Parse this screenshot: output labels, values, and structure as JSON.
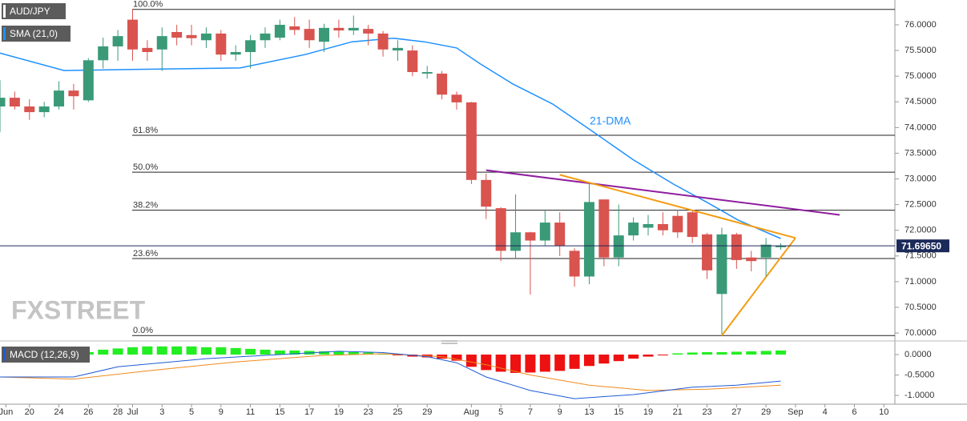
{
  "chart_data": [
    {
      "type": "candlestick",
      "title": "AUD/JPY",
      "x": [
        0,
        1,
        2,
        3,
        4,
        5,
        6,
        7,
        8,
        9,
        10,
        11,
        12,
        13,
        14,
        15,
        16,
        17,
        18,
        19,
        20,
        21,
        22,
        23,
        24,
        25,
        26,
        27,
        28,
        29,
        30,
        31,
        32,
        33,
        34,
        35,
        36,
        37,
        38,
        39,
        40,
        41,
        42,
        43,
        44,
        45,
        46,
        47,
        48,
        49,
        50,
        51,
        52,
        53
      ],
      "open": [
        74.41,
        74.58,
        74.41,
        74.3,
        74.41,
        74.72,
        74.53,
        75.31,
        75.58,
        76.1,
        75.55,
        75.52,
        75.86,
        75.8,
        75.7,
        75.83,
        75.42,
        75.47,
        75.7,
        75.75,
        75.97,
        75.92,
        75.67,
        75.94,
        75.89,
        75.92,
        75.83,
        75.5,
        75.5,
        75.05,
        75.05,
        74.64,
        74.49,
        72.98,
        72.43,
        71.6,
        71.96,
        71.8,
        72.15,
        71.6,
        71.1,
        72.6,
        71.47,
        71.9,
        72.05,
        72.12,
        72.28,
        72.35,
        71.92,
        70.76,
        71.92,
        71.47,
        71.47,
        71.67
      ],
      "high": [
        74.92,
        74.7,
        74.55,
        74.5,
        74.9,
        74.85,
        75.35,
        75.75,
        75.9,
        76.3,
        75.7,
        75.95,
        76.0,
        76.0,
        75.95,
        75.9,
        75.6,
        75.8,
        75.95,
        76.1,
        76.15,
        76.1,
        76.02,
        76.1,
        76.18,
        76.0,
        75.88,
        75.7,
        75.6,
        75.2,
        75.1,
        74.7,
        74.5,
        73.1,
        72.45,
        72.7,
        71.97,
        72.38,
        72.35,
        71.65,
        72.9,
        72.6,
        72.5,
        72.25,
        72.3,
        72.35,
        72.4,
        72.38,
        71.95,
        72.05,
        71.95,
        71.6,
        71.85,
        71.75
      ],
      "low": [
        73.91,
        74.35,
        74.15,
        74.2,
        74.35,
        74.35,
        74.5,
        75.15,
        75.3,
        75.3,
        75.3,
        75.1,
        75.6,
        75.6,
        75.55,
        75.3,
        75.3,
        75.15,
        75.55,
        75.7,
        75.8,
        75.55,
        75.47,
        75.75,
        75.8,
        75.6,
        75.38,
        75.3,
        75.0,
        74.95,
        74.55,
        74.35,
        72.9,
        72.22,
        71.4,
        71.45,
        70.75,
        71.7,
        71.5,
        70.9,
        70.95,
        71.3,
        71.3,
        71.8,
        71.9,
        71.9,
        71.85,
        71.75,
        71.05,
        69.98,
        71.25,
        71.2,
        71.1,
        71.62
      ],
      "close": [
        74.58,
        74.41,
        74.3,
        74.41,
        74.72,
        74.61,
        75.31,
        75.58,
        75.78,
        75.52,
        75.47,
        75.78,
        75.75,
        75.74,
        75.83,
        75.42,
        75.47,
        75.7,
        75.83,
        76.0,
        75.9,
        75.7,
        75.94,
        75.89,
        75.94,
        75.83,
        75.52,
        75.55,
        75.08,
        75.08,
        74.64,
        74.49,
        72.98,
        72.46,
        71.6,
        71.96,
        71.8,
        72.15,
        71.7,
        71.1,
        72.55,
        71.47,
        71.9,
        72.15,
        72.12,
        72.0,
        71.96,
        71.87,
        71.22,
        71.92,
        71.42,
        71.4,
        71.72,
        71.7
      ],
      "up_color": "#3a9a78",
      "down_color": "#d9534f",
      "xlim": [
        0,
        60.75
      ],
      "xticks": [
        {
          "value": 0.4,
          "label": "Jun"
        },
        {
          "value": 2,
          "label": "20"
        },
        {
          "value": 4,
          "label": "24"
        },
        {
          "value": 6,
          "label": "26"
        },
        {
          "value": 8,
          "label": "28"
        },
        {
          "value": 9,
          "label": "Jul"
        },
        {
          "value": 11,
          "label": "3"
        },
        {
          "value": 13,
          "label": "5"
        },
        {
          "value": 15,
          "label": "9"
        },
        {
          "value": 17,
          "label": "11"
        },
        {
          "value": 19,
          "label": "15"
        },
        {
          "value": 21,
          "label": "17"
        },
        {
          "value": 23,
          "label": "19"
        },
        {
          "value": 25,
          "label": "23"
        },
        {
          "value": 27,
          "label": "25"
        },
        {
          "value": 29,
          "label": "29"
        },
        {
          "value": 32,
          "label": "Aug"
        },
        {
          "value": 34,
          "label": "5"
        },
        {
          "value": 36,
          "label": "7"
        },
        {
          "value": 38,
          "label": "9"
        },
        {
          "value": 40,
          "label": "13"
        },
        {
          "value": 42,
          "label": "15"
        },
        {
          "value": 44,
          "label": "19"
        },
        {
          "value": 46,
          "label": "21"
        },
        {
          "value": 48,
          "label": "23"
        },
        {
          "value": 50,
          "label": "27"
        },
        {
          "value": 52,
          "label": "29"
        },
        {
          "value": 54,
          "label": "Sep"
        },
        {
          "value": 56,
          "label": "4"
        },
        {
          "value": 58,
          "label": "6"
        },
        {
          "value": 60,
          "label": "10"
        }
      ],
      "ylim": [
        69.845,
        76.483
      ],
      "yticks": [
        {
          "value": 70,
          "label": "70.0000"
        },
        {
          "value": 70.5,
          "label": "70.5000"
        },
        {
          "value": 71,
          "label": "71.0000"
        },
        {
          "value": 71.5,
          "label": "71.5000"
        },
        {
          "value": 72,
          "label": "72.0000"
        },
        {
          "value": 72.5,
          "label": "72.5000"
        },
        {
          "value": 73,
          "label": "73.0000"
        },
        {
          "value": 73.5,
          "label": "73.5000"
        },
        {
          "value": 74,
          "label": "74.0000"
        },
        {
          "value": 74.5,
          "label": "74.5000"
        },
        {
          "value": 75,
          "label": "75.0000"
        },
        {
          "value": 75.5,
          "label": "75.5000"
        },
        {
          "value": 76,
          "label": "76.0000"
        }
      ],
      "indicator": {
        "name": "SMA (21,0)",
        "annotation": "21-DMA",
        "color": "#1e90ff",
        "x": [
          0,
          4.35,
          9,
          16.3,
          20.7,
          23.9,
          26.7,
          28.8,
          31,
          32.6,
          34.8,
          37.5,
          40.3,
          43,
          45.7,
          47.9,
          50.1,
          53
        ],
        "values": [
          75.45,
          75.11,
          75.13,
          75.16,
          75.42,
          75.67,
          75.74,
          75.67,
          75.55,
          75.24,
          74.85,
          74.46,
          73.91,
          73.37,
          72.9,
          72.56,
          72.2,
          71.84
        ]
      },
      "levels": [
        {
          "label": "100.0%",
          "value": 76.3
        },
        {
          "label": "61.8%",
          "value": 73.85
        },
        {
          "label": "50.0%",
          "value": 73.13
        },
        {
          "label": "38.2%",
          "value": 72.39
        },
        {
          "label": "23.6%",
          "value": 71.45
        },
        {
          "label": "0.0%",
          "value": 69.95
        }
      ],
      "trendlines": [
        {
          "color": "#8e1e9e",
          "x": [
            33,
            57
          ],
          "values": [
            73.17,
            72.3
          ]
        },
        {
          "color": "#f39c12",
          "x": [
            38,
            54
          ],
          "values": [
            73.08,
            71.85
          ]
        },
        {
          "color": "#f39c12",
          "x": [
            49,
            54
          ],
          "values": [
            69.95,
            71.85
          ]
        }
      ],
      "last_price": {
        "value": 71.6965,
        "label": "71.69650"
      },
      "watermark": "FXSTREET"
    },
    {
      "type": "macd",
      "title": "MACD (12,26,9)",
      "xlim": [
        0,
        60.75
      ],
      "ylim": [
        -1.216,
        0.255
      ],
      "yticks": [
        {
          "value": 0,
          "label": "0.0000"
        },
        {
          "value": -0.5,
          "label": "-0.5000"
        },
        {
          "value": -1,
          "label": "-1.0000"
        }
      ],
      "histogram": {
        "up_color": "#22ee22",
        "down_color": "#ee1111",
        "x": [
          6,
          7,
          8,
          9,
          10,
          11,
          12,
          13,
          14,
          15,
          16,
          17,
          18,
          19,
          20,
          21,
          22,
          23,
          24,
          25,
          26,
          27,
          28,
          29,
          30,
          31,
          32,
          33,
          34,
          35,
          36,
          37,
          38,
          39,
          40,
          41,
          42,
          43,
          44,
          45,
          46,
          47,
          48,
          49,
          50,
          51,
          52,
          53
        ],
        "values": [
          0.06,
          0.12,
          0.15,
          0.18,
          0.2,
          0.2,
          0.2,
          0.2,
          0.18,
          0.18,
          0.16,
          0.14,
          0.12,
          0.1,
          0.1,
          0.09,
          0.08,
          0.07,
          0.06,
          0.05,
          0.02,
          -0.02,
          -0.05,
          -0.07,
          -0.1,
          -0.15,
          -0.3,
          -0.38,
          -0.42,
          -0.45,
          -0.44,
          -0.42,
          -0.4,
          -0.35,
          -0.28,
          -0.22,
          -0.16,
          -0.1,
          -0.05,
          -0.02,
          0.03,
          0.05,
          0.06,
          0.06,
          0.07,
          0.08,
          0.09,
          0.1
        ]
      },
      "macd": {
        "color": "#1e5bd6",
        "x": [
          0,
          5,
          8,
          14,
          19,
          23,
          26,
          29,
          31,
          33,
          36,
          39,
          43,
          47,
          50,
          53
        ],
        "values": [
          -0.55,
          -0.55,
          -0.3,
          -0.1,
          0.0,
          0.08,
          0.05,
          -0.05,
          -0.2,
          -0.55,
          -0.88,
          -1.08,
          -0.98,
          -0.8,
          -0.75,
          -0.65
        ]
      },
      "signal": {
        "color": "#f08a1c",
        "x": [
          0,
          5,
          10,
          16,
          22,
          26,
          30,
          33,
          36,
          40,
          44,
          48,
          53
        ],
        "values": [
          -0.55,
          -0.6,
          -0.4,
          -0.18,
          -0.02,
          0.02,
          -0.05,
          -0.25,
          -0.5,
          -0.75,
          -0.88,
          -0.85,
          -0.75
        ]
      }
    }
  ]
}
